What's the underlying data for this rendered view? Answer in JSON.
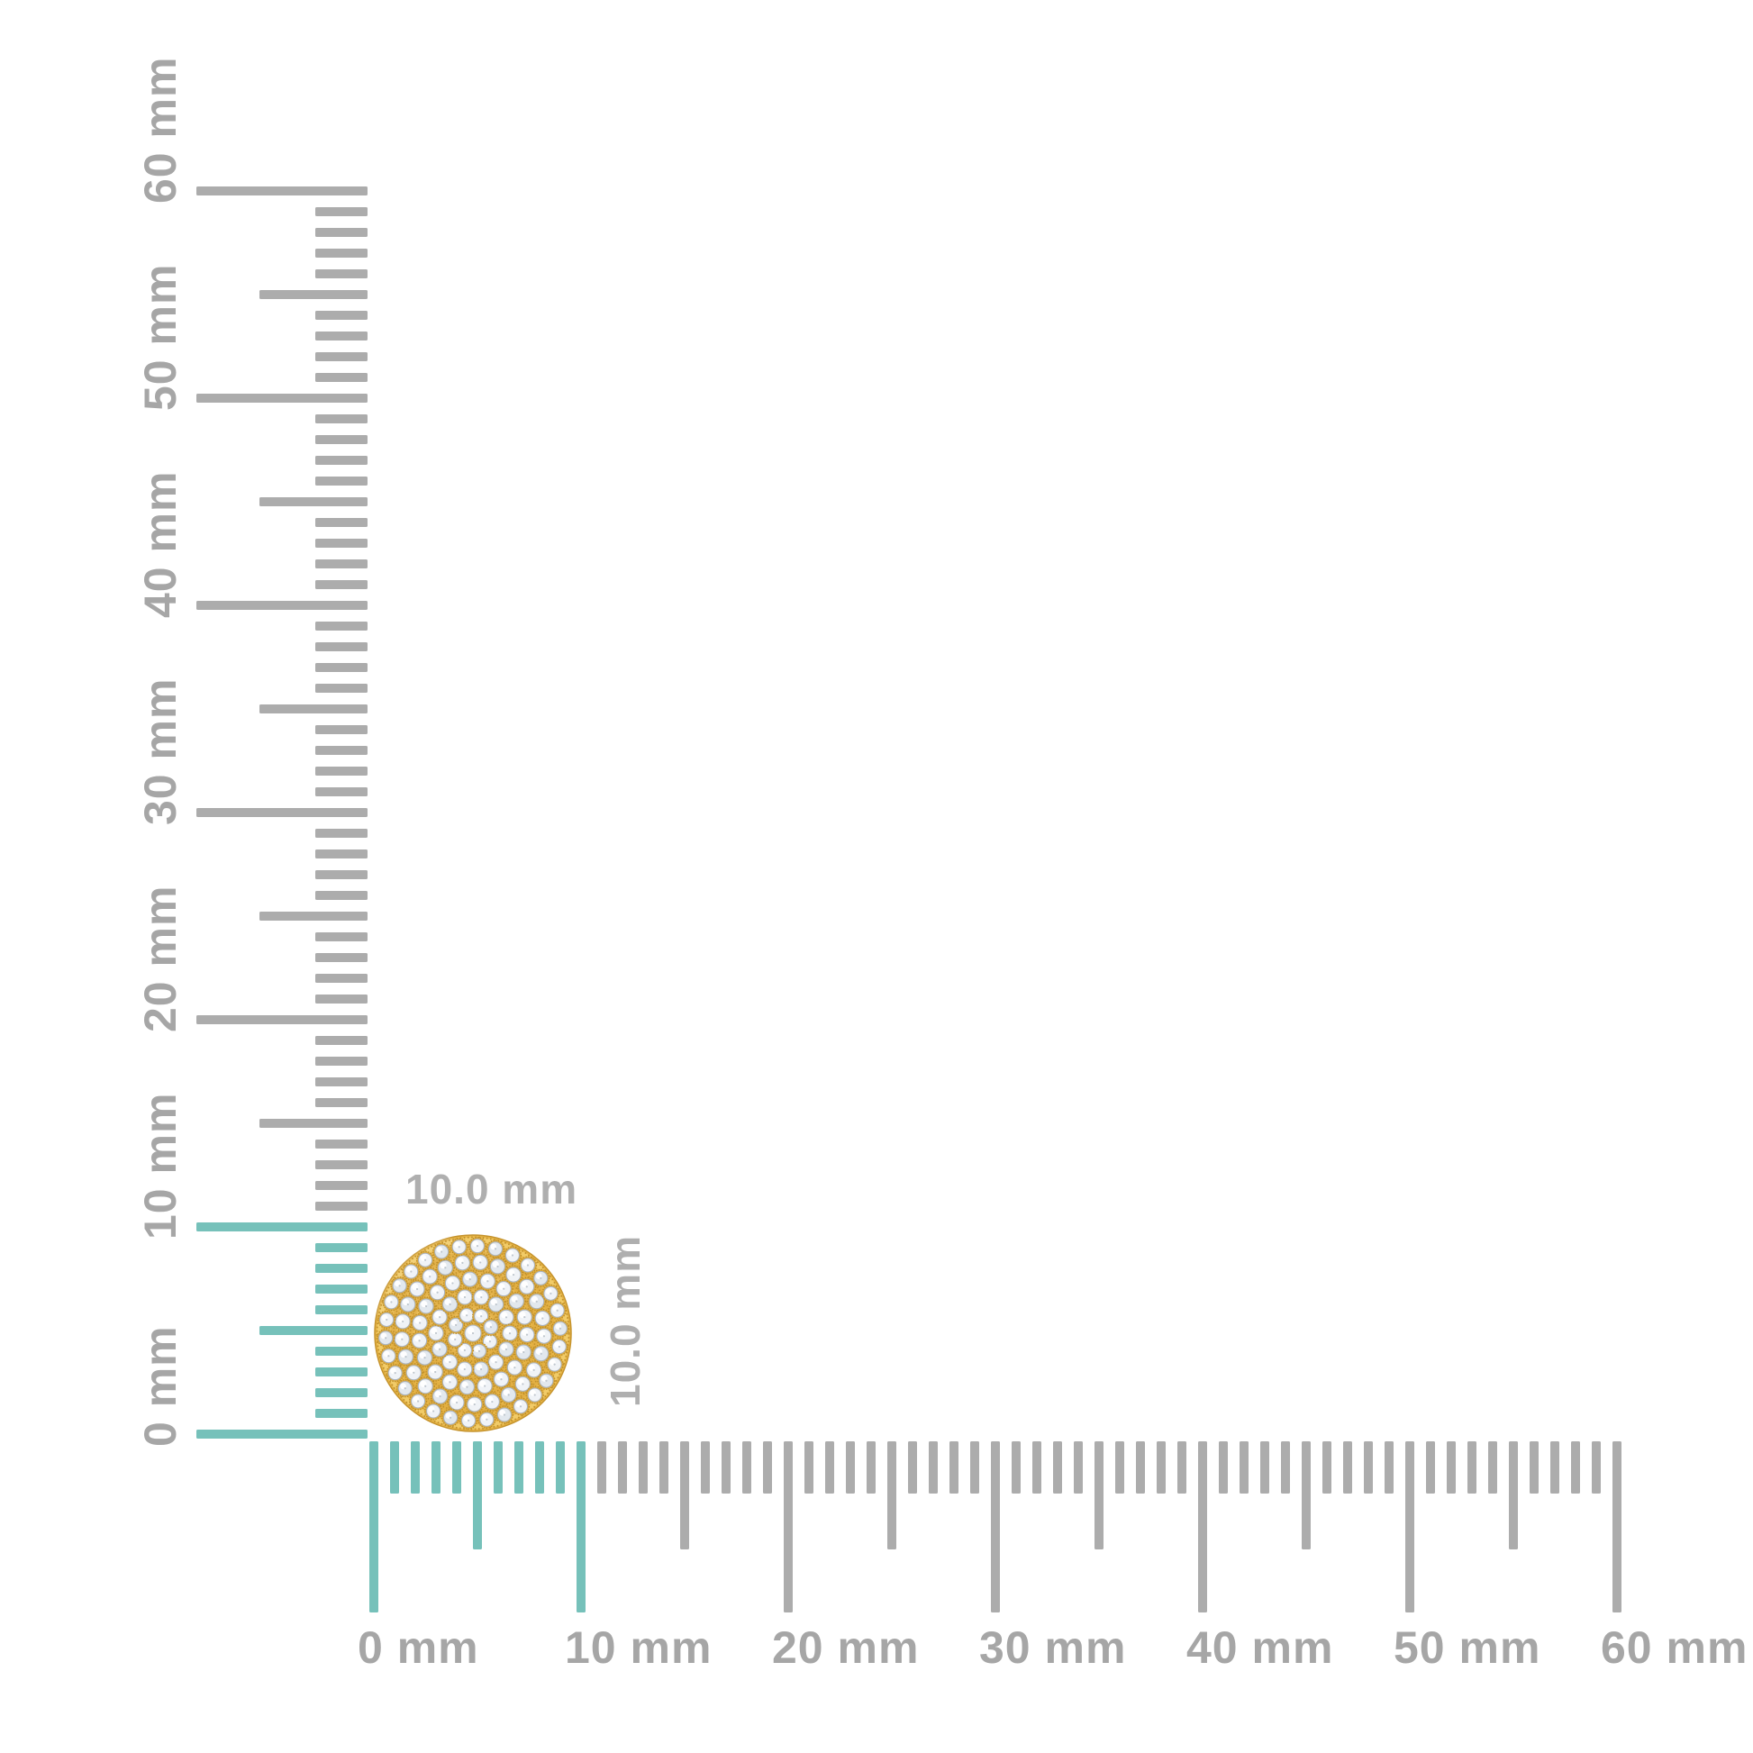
{
  "page": {
    "background": "#FFFFFF"
  },
  "rulers": {
    "unit": "mm",
    "min_mm": 0,
    "max_mm": 60,
    "minor_step_mm": 1,
    "medium_step_mm": 5,
    "major_step_mm": 10,
    "highlight_range_mm": [
      0,
      10
    ],
    "colors": {
      "tick": "#ACACAC",
      "tick_highlight": "#76C1BA",
      "label": "#A6A6A6"
    },
    "vertical": {
      "labels": [
        "0 mm",
        "10 mm",
        "20 mm",
        "30 mm",
        "40 mm",
        "50 mm",
        "60 mm"
      ]
    },
    "horizontal": {
      "labels": [
        "0 mm",
        "10 mm",
        "20 mm",
        "30 mm",
        "40 mm",
        "50 mm",
        "60 mm"
      ]
    }
  },
  "product": {
    "name": "round-pave-cluster-stud-earring",
    "width_label": "10.0 mm",
    "height_label": "10.0 mm",
    "width_mm": 10.0,
    "height_mm": 10.0,
    "label_color": "#AFAFAF",
    "colors": {
      "base": "#E8B647",
      "edge": "#C5932D",
      "rim": "#F2CD6C",
      "milgrain": "#BA8B27",
      "seat": "#DCAA3F",
      "stone": "#F0F3F7",
      "stone_alt": "#E2E8EE",
      "stone_edge": "#A7B0BB",
      "sparkle": "#FFFFFF"
    },
    "stone_rings": [
      {
        "radius": 0,
        "count": 1,
        "stone_radius": 9
      },
      {
        "radius": 21,
        "count": 8,
        "stone_radius": 7.5
      },
      {
        "radius": 41,
        "count": 14,
        "stone_radius": 8
      },
      {
        "radius": 60,
        "count": 19,
        "stone_radius": 8
      },
      {
        "radius": 79,
        "count": 25,
        "stone_radius": 8
      },
      {
        "radius": 97,
        "count": 30,
        "stone_radius": 7.5
      }
    ],
    "milgrain_radii": [
      31,
      50.5,
      69.5,
      88,
      106
    ]
  }
}
